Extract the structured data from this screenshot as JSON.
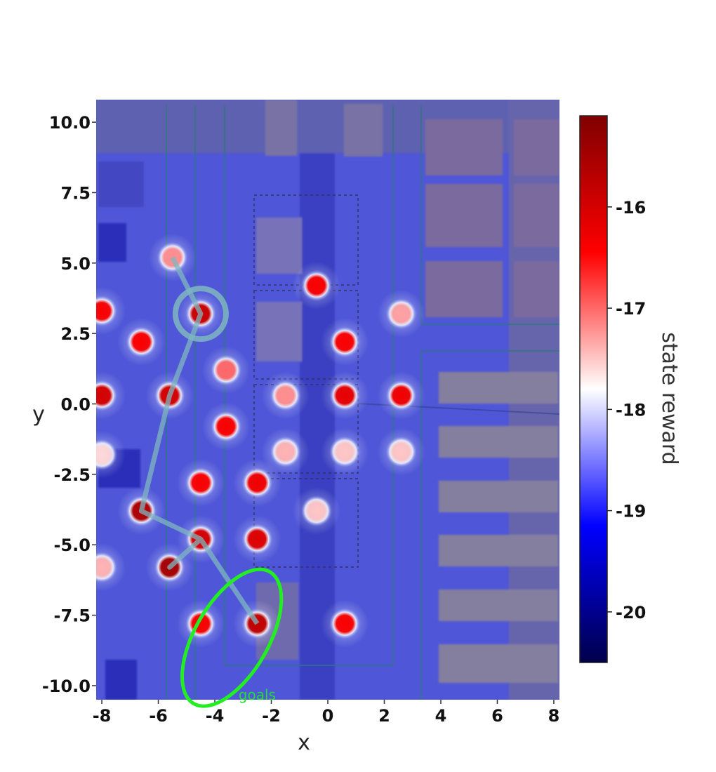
{
  "chart_data": {
    "type": "heatmap",
    "title": "",
    "xlabel": "x",
    "ylabel": "y",
    "xlim": [
      -8.2,
      8.2
    ],
    "ylim": [
      -10.5,
      10.8
    ],
    "xticks": [
      -8,
      -6,
      -4,
      -2,
      0,
      2,
      4,
      6,
      8
    ],
    "xtick_labels": [
      "-8",
      "-6",
      "-4",
      "-2",
      "0",
      "2",
      "4",
      "6",
      "8"
    ],
    "yticks": [
      10.0,
      7.5,
      5.0,
      2.5,
      0.0,
      -2.5,
      -5.0,
      -7.5,
      -10.0
    ],
    "ytick_labels": [
      "10.0",
      "7.5",
      "5.0",
      "2.5",
      "0.0",
      "-2.5",
      "-5.0",
      "-7.5",
      "-10.0"
    ],
    "background_reward": -18.6,
    "points": [
      {
        "x": -5.5,
        "y": 5.2,
        "reward": -17.2
      },
      {
        "x": -4.5,
        "y": 3.2,
        "reward": -15.9
      },
      {
        "x": -8.0,
        "y": 3.3,
        "reward": -16.4
      },
      {
        "x": -6.6,
        "y": 2.2,
        "reward": -16.4
      },
      {
        "x": -0.4,
        "y": 4.2,
        "reward": -16.4
      },
      {
        "x": 0.6,
        "y": 2.2,
        "reward": -16.4
      },
      {
        "x": 2.6,
        "y": 3.2,
        "reward": -17.3
      },
      {
        "x": -3.6,
        "y": 1.2,
        "reward": -17.0
      },
      {
        "x": -8.0,
        "y": 0.3,
        "reward": -16.0
      },
      {
        "x": -5.6,
        "y": 0.3,
        "reward": -16.0
      },
      {
        "x": -1.5,
        "y": 0.3,
        "reward": -17.2
      },
      {
        "x": 0.6,
        "y": 0.3,
        "reward": -16.2
      },
      {
        "x": 2.6,
        "y": 0.3,
        "reward": -16.3
      },
      {
        "x": -3.6,
        "y": -0.8,
        "reward": -16.4
      },
      {
        "x": -8.0,
        "y": -1.8,
        "reward": -17.6
      },
      {
        "x": -1.5,
        "y": -1.7,
        "reward": -17.4
      },
      {
        "x": 0.6,
        "y": -1.7,
        "reward": -17.5
      },
      {
        "x": 2.6,
        "y": -1.7,
        "reward": -17.5
      },
      {
        "x": -4.5,
        "y": -2.8,
        "reward": -16.4
      },
      {
        "x": -2.5,
        "y": -2.8,
        "reward": -16.3
      },
      {
        "x": -6.6,
        "y": -3.8,
        "reward": -15.6
      },
      {
        "x": -0.4,
        "y": -3.8,
        "reward": -17.5
      },
      {
        "x": -4.5,
        "y": -4.8,
        "reward": -16.0
      },
      {
        "x": -2.5,
        "y": -4.8,
        "reward": -16.1
      },
      {
        "x": -5.6,
        "y": -5.8,
        "reward": -15.5
      },
      {
        "x": -8.0,
        "y": -5.8,
        "reward": -17.4
      },
      {
        "x": -4.5,
        "y": -7.8,
        "reward": -16.4
      },
      {
        "x": -2.5,
        "y": -7.8,
        "reward": -15.8
      },
      {
        "x": 0.6,
        "y": -7.8,
        "reward": -16.4
      }
    ],
    "path": [
      {
        "x": -5.5,
        "y": 5.2
      },
      {
        "x": -4.5,
        "y": 3.2
      },
      {
        "x": -5.6,
        "y": 0.3
      },
      {
        "x": -6.6,
        "y": -3.8
      },
      {
        "x": -4.5,
        "y": -4.8
      },
      {
        "x": -5.6,
        "y": -5.8
      },
      {
        "x": -4.5,
        "y": -4.8
      },
      {
        "x": -2.5,
        "y": -7.8
      }
    ],
    "start_marker": {
      "x": -4.5,
      "y": 3.2
    },
    "goal_region": {
      "cx": -3.4,
      "cy": -8.3,
      "rx_data": 1.3,
      "ry_data": 2.7,
      "angle_deg": 30
    },
    "annotations": [
      {
        "text": "goals",
        "x": -2.5,
        "y": -10.3,
        "color": "#22dd33"
      }
    ],
    "colorbar": {
      "label": "state reward",
      "vmin": -20.5,
      "vmax": -15.1,
      "ticks": [
        -16,
        -17,
        -18,
        -19,
        -20
      ],
      "tick_labels": [
        "-16",
        "-17",
        "-18",
        "-19",
        "-20"
      ],
      "colormap": "seismic"
    }
  }
}
